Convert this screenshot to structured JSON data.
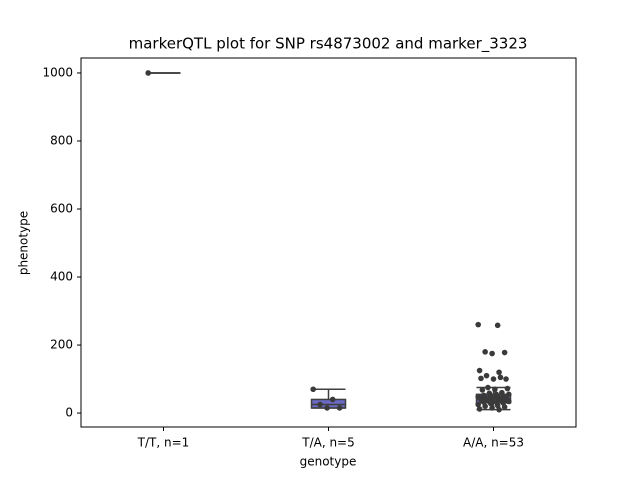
{
  "chart_data": {
    "type": "box",
    "title": "markerQTL plot for SNP rs4873002 and marker_3323",
    "xlabel": "genotype",
    "ylabel": "phenotype",
    "categories": [
      "T/T, n=1",
      "T/A, n=5",
      "A/A, n=53"
    ],
    "boxes": [
      {
        "min": 1000,
        "q1": 1000,
        "median": 1000,
        "q3": 1000,
        "max": 1000,
        "color": "#6a6ac4"
      },
      {
        "min": 15,
        "q1": 15,
        "median": 25,
        "q3": 40,
        "max": 70,
        "color": "#6a6ac4"
      },
      {
        "min": 10,
        "q1": 30,
        "median": 42,
        "q3": 55,
        "max": 75,
        "color": "#7a5cc4"
      }
    ],
    "points": [
      [
        1000
      ],
      [
        70,
        40,
        25,
        15,
        15
      ],
      [
        260,
        258,
        180,
        178,
        175,
        125,
        120,
        110,
        100,
        100,
        102,
        105,
        75,
        72,
        70,
        68,
        60,
        58,
        55,
        55,
        52,
        50,
        50,
        48,
        47,
        46,
        45,
        45,
        44,
        43,
        42,
        42,
        41,
        40,
        40,
        39,
        38,
        37,
        36,
        35,
        35,
        34,
        33,
        32,
        30,
        28,
        25,
        22,
        20,
        18,
        15,
        12,
        10
      ]
    ],
    "point_color": "#3a3a3a",
    "ylim": [
      -41,
      1044
    ],
    "yticks": [
      0,
      200,
      400,
      600,
      800,
      1000
    ]
  }
}
